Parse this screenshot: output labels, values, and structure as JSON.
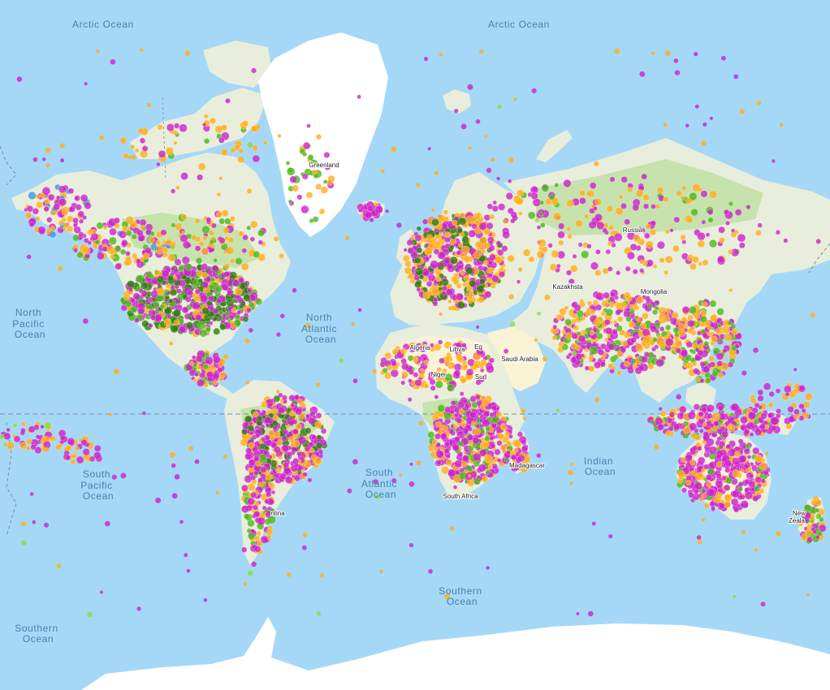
{
  "map": {
    "colors": {
      "water": "#a5d8f7",
      "land": "#e8eedb",
      "land_forest": "#c6e2ad",
      "desert": "#fbf3d5",
      "ice": "#ffffff",
      "dateline": "#7a8aa0"
    },
    "marker_colors": {
      "magenta": "#cc22cc",
      "orange": "#ffae1a",
      "green": "#4db81a",
      "dark_green": "#2f7d0e",
      "light_green": "#88dd44",
      "blue": "#3b9ae0"
    },
    "oceans": [
      {
        "id": "arctic-ocean-west",
        "lines": [
          "Arctic Ocean"
        ]
      },
      {
        "id": "arctic-ocean-east",
        "lines": [
          "Arctic Ocean"
        ]
      },
      {
        "id": "north-pacific-ocean",
        "lines": [
          "North",
          "Pacific",
          "Ocean"
        ]
      },
      {
        "id": "north-atlantic-ocean",
        "lines": [
          "North",
          "Atlantic",
          "Ocean"
        ]
      },
      {
        "id": "south-pacific-ocean",
        "lines": [
          "South",
          "Pacific",
          "Ocean"
        ]
      },
      {
        "id": "south-atlantic-ocean",
        "lines": [
          "South",
          "Atlantic",
          "Ocean"
        ]
      },
      {
        "id": "indian-ocean",
        "lines": [
          "Indian",
          "Ocean"
        ]
      },
      {
        "id": "southern-ocean-center",
        "lines": [
          "Southern",
          "Ocean"
        ]
      },
      {
        "id": "southern-ocean-west",
        "lines": [
          "Southern",
          "Ocean"
        ]
      }
    ],
    "places": [
      {
        "id": "greenland",
        "lines": [
          "Greenland"
        ]
      },
      {
        "id": "russia",
        "lines": [
          "Russia"
        ]
      },
      {
        "id": "kazakhstan",
        "lines": [
          "Kazakhsta"
        ]
      },
      {
        "id": "mongolia",
        "lines": [
          "Mongolia"
        ]
      },
      {
        "id": "algeria",
        "lines": [
          "Algeria"
        ]
      },
      {
        "id": "libya",
        "lines": [
          "Libya"
        ]
      },
      {
        "id": "egypt",
        "lines": [
          "Eg"
        ]
      },
      {
        "id": "saudi-arabia",
        "lines": [
          "Saudi Arabia"
        ]
      },
      {
        "id": "niger",
        "lines": [
          "Niger"
        ]
      },
      {
        "id": "sudan",
        "lines": [
          "Sud"
        ]
      },
      {
        "id": "madagascar",
        "lines": [
          "Madagascar"
        ]
      },
      {
        "id": "south-africa",
        "lines": [
          "South Africa"
        ]
      },
      {
        "id": "argentina",
        "lines": [
          "ntina"
        ]
      },
      {
        "id": "new-zealand",
        "lines": [
          "New",
          "Zeala"
        ]
      }
    ]
  }
}
